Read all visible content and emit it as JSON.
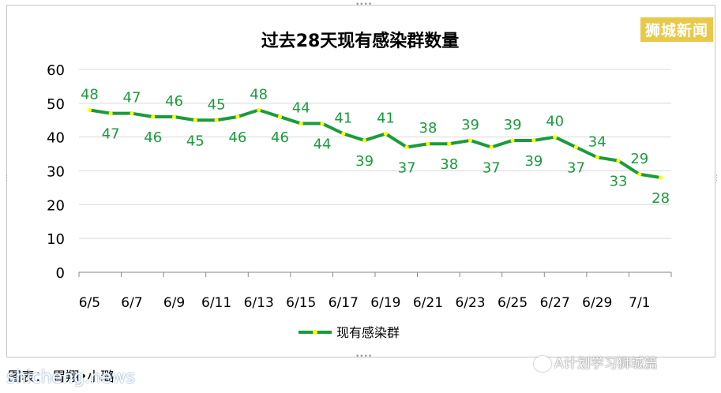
{
  "brand": "狮城新闻",
  "credit": "图表： 胃翔•小璐",
  "watermark_left": "shicheng.news",
  "watermark_right": "A计划学习狮城篇",
  "colors": {
    "line": "#1a9b3c",
    "marker": "#ffff00",
    "label": "#1a9b3c",
    "grid": "#d9d9d9"
  },
  "chart_data": {
    "type": "line",
    "title": "过去28天现有感染群数量",
    "xlabel": "",
    "ylabel": "",
    "ylim": [
      0,
      60
    ],
    "yticks": [
      0,
      10,
      20,
      30,
      40,
      50,
      60
    ],
    "grid": true,
    "legend_position": "bottom",
    "categories": [
      "6/5",
      "6/6",
      "6/7",
      "6/8",
      "6/9",
      "6/10",
      "6/11",
      "6/12",
      "6/13",
      "6/14",
      "6/15",
      "6/16",
      "6/17",
      "6/18",
      "6/19",
      "6/20",
      "6/21",
      "6/22",
      "6/23",
      "6/24",
      "6/25",
      "6/26",
      "6/27",
      "6/28",
      "6/29",
      "6/30",
      "7/1",
      "7/2"
    ],
    "tick_labels": [
      "6/5",
      "6/7",
      "6/9",
      "6/11",
      "6/13",
      "6/15",
      "6/17",
      "6/19",
      "6/21",
      "6/23",
      "6/25",
      "6/27",
      "6/29",
      "7/1"
    ],
    "series": [
      {
        "name": "现有感染群",
        "values": [
          48,
          47,
          47,
          46,
          46,
          45,
          45,
          46,
          48,
          46,
          44,
          44,
          41,
          39,
          41,
          37,
          38,
          38,
          39,
          37,
          39,
          39,
          40,
          37,
          34,
          33,
          29,
          28
        ]
      }
    ]
  }
}
